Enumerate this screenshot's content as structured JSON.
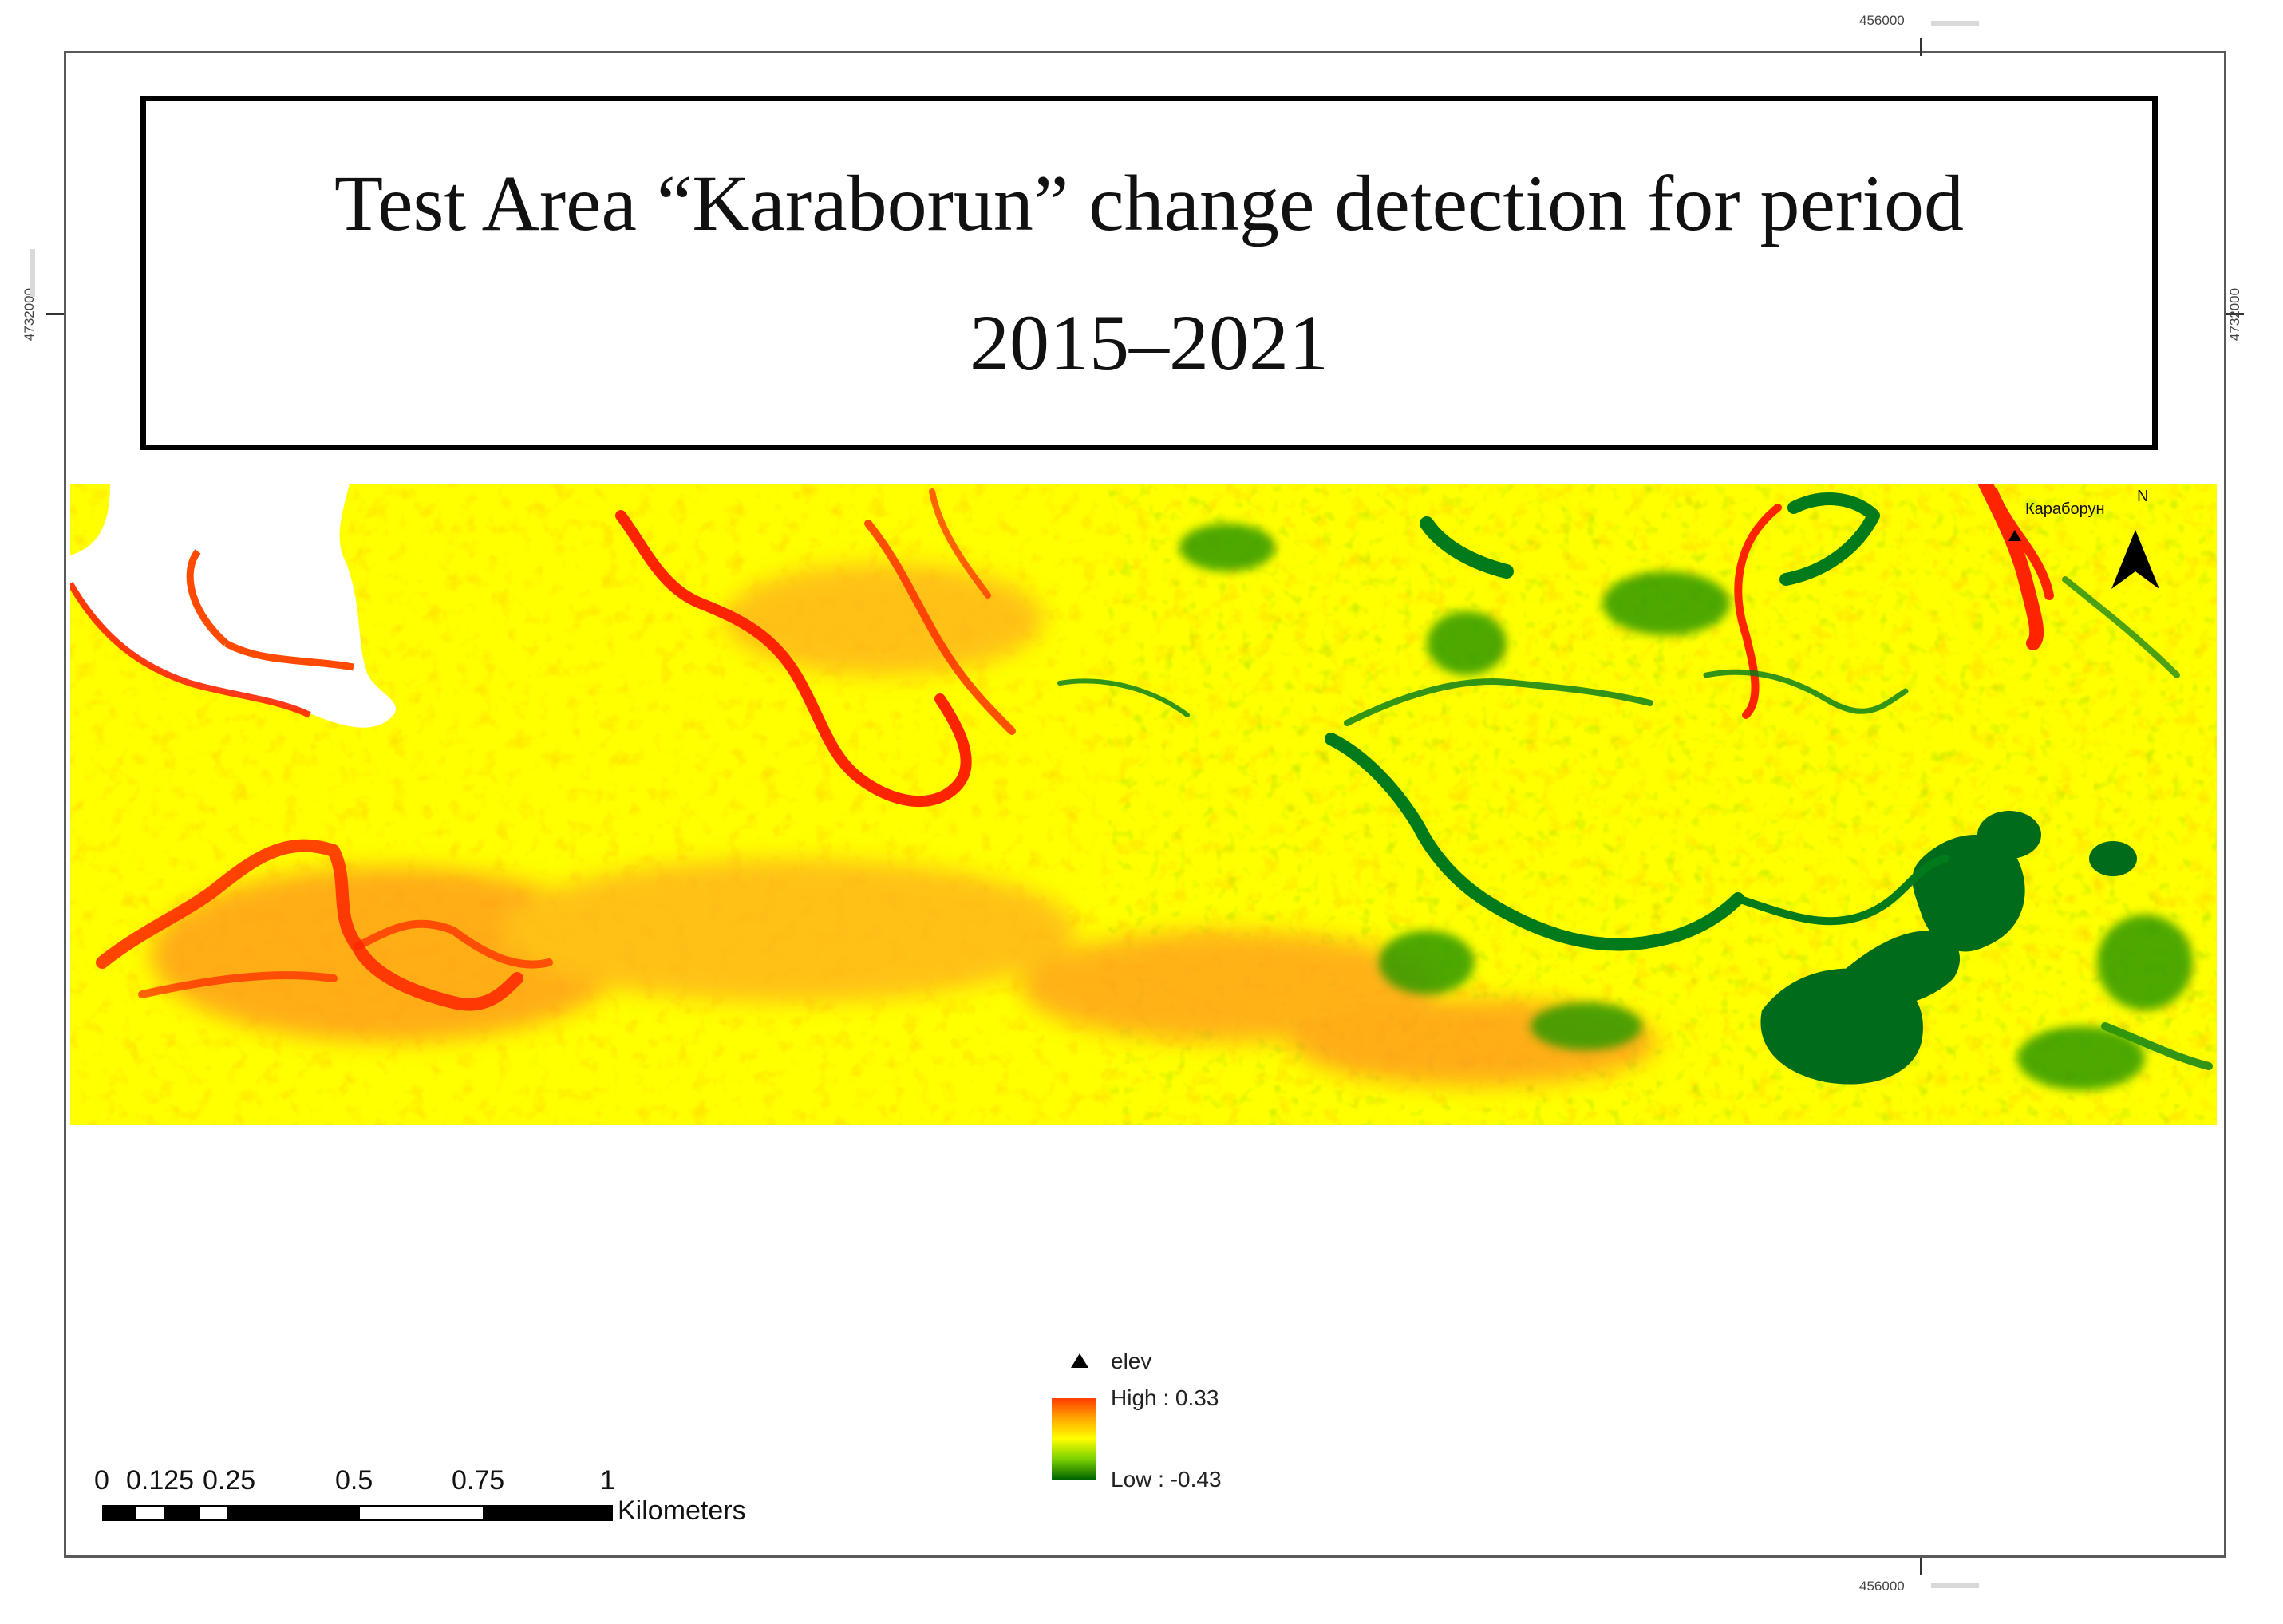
{
  "map": {
    "title": "Test Area “Karaborun” change detection for period 2015–2021",
    "place_label": "Караборун",
    "north_label": "N",
    "coordinates": {
      "top_easting": "456000",
      "bottom_easting": "456000",
      "left_northing": "4732000",
      "right_northing": "4732000"
    }
  },
  "legend": {
    "point_label": "elev",
    "high_label": "High : 0.33",
    "low_label": "Low : -0.43",
    "ramp_colors": [
      "#ff3b00",
      "#ffa800",
      "#ffff00",
      "#7ad000",
      "#006400"
    ]
  },
  "scale_bar": {
    "ticks": [
      "0",
      "0.125",
      "0.25",
      "0.5",
      "0.75",
      "1"
    ],
    "unit": "Kilometers"
  },
  "colors": {
    "yellow": "#ffff00",
    "orange": "#ff9a1a",
    "red": "#ff2400",
    "green": "#55b800",
    "dark_green": "#006b1a"
  }
}
